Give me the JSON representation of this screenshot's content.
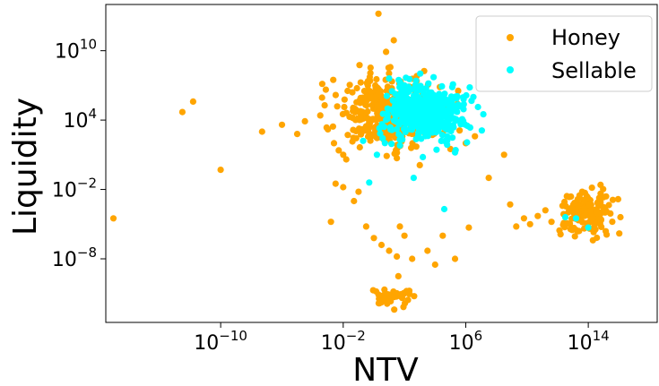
{
  "chart_data": {
    "type": "scatter",
    "title": "",
    "xlabel": "NTV",
    "ylabel": "Liquidity",
    "xscale": "log",
    "yscale": "log",
    "xlim_exp": [
      -17.5,
      18.5
    ],
    "ylim_exp": [
      -13.5,
      14
    ],
    "x_ticks": [
      {
        "exp": -10,
        "base": "10",
        "sup": "−10"
      },
      {
        "exp": -2,
        "base": "10",
        "sup": "−2"
      },
      {
        "exp": 6,
        "base": "10",
        "sup": "6"
      },
      {
        "exp": 14,
        "base": "10",
        "sup": "14"
      }
    ],
    "y_ticks": [
      {
        "exp": 10,
        "base": "10",
        "sup": "10"
      },
      {
        "exp": 4,
        "base": "10",
        "sup": "4"
      },
      {
        "exp": -2,
        "base": "10",
        "sup": "−2"
      },
      {
        "exp": -8,
        "base": "10",
        "sup": "−8"
      }
    ],
    "grid": false,
    "legend_position": "top-right",
    "series": [
      {
        "name": "Honey",
        "color": "#FFA500",
        "clusters": [
          {
            "cx": 0.8,
            "cy": 4.6,
            "sx": 1.6,
            "sy": 1.5,
            "n": 380
          },
          {
            "cx": 14.0,
            "cy": -4.0,
            "sx": 0.85,
            "sy": 0.9,
            "n": 150
          },
          {
            "cx": 1.0,
            "cy": -11.3,
            "sx": 0.7,
            "sy": 0.45,
            "n": 45
          }
        ],
        "points": [
          [
            -17.0,
            -4.5
          ],
          [
            -12.5,
            4.7
          ],
          [
            -11.8,
            5.6
          ],
          [
            -10.0,
            -0.3
          ],
          [
            -7.3,
            3.0
          ],
          [
            -6.0,
            3.6
          ],
          [
            -5.0,
            2.8
          ],
          [
            -4.5,
            3.9
          ],
          [
            -3.5,
            4.4
          ],
          [
            -3.0,
            3.2
          ],
          [
            -2.5,
            -1.5
          ],
          [
            -2.0,
            -1.8
          ],
          [
            -2.8,
            -4.8
          ],
          [
            -1.3,
            -3.0
          ],
          [
            -1.0,
            -2.2
          ],
          [
            -0.5,
            -5.2
          ],
          [
            0.0,
            -6.2
          ],
          [
            0.5,
            -6.8
          ],
          [
            1.0,
            -7.3
          ],
          [
            1.5,
            -7.8
          ],
          [
            1.6,
            -9.5
          ],
          [
            2.0,
            -6.0
          ],
          [
            2.5,
            -8.0
          ],
          [
            3.5,
            -7.3
          ],
          [
            4.0,
            -8.5
          ],
          [
            4.5,
            -6.0
          ],
          [
            5.3,
            -8.0
          ],
          [
            6.2,
            -5.3
          ],
          [
            7.5,
            -1.0
          ],
          [
            8.5,
            1.0
          ],
          [
            8.9,
            -3.3
          ],
          [
            9.3,
            -5.2
          ],
          [
            9.8,
            -4.5
          ],
          [
            10.2,
            -5.0
          ],
          [
            10.7,
            -4.3
          ],
          [
            11.2,
            -3.8
          ],
          [
            11.6,
            -4.8
          ],
          [
            -2.0,
            1.0
          ],
          [
            -2.6,
            2.0
          ],
          [
            0.8,
            9.9
          ],
          [
            1.3,
            10.9
          ],
          [
            2.8,
            7.8
          ],
          [
            4.2,
            5.3
          ],
          [
            5.6,
            3.1
          ],
          [
            6.6,
            2.6
          ],
          [
            3.0,
            0.1
          ],
          [
            1.7,
            -5.2
          ],
          [
            -1.8,
            0.6
          ],
          [
            5.0,
            1.5
          ],
          [
            6.0,
            2.0
          ],
          [
            0.3,
            13.2
          ],
          [
            12.4,
            -4.9
          ],
          [
            12.9,
            -3.6
          ],
          [
            13.6,
            -2.2
          ],
          [
            14.8,
            -1.6
          ],
          [
            15.6,
            -2.9
          ],
          [
            16.1,
            -4.4
          ],
          [
            15.2,
            -5.9
          ],
          [
            13.4,
            -5.6
          ],
          [
            14.3,
            -6.4
          ]
        ]
      },
      {
        "name": "Sellable",
        "color": "#00FFFF",
        "clusters": [
          {
            "cx": 3.3,
            "cy": 4.6,
            "sx": 1.2,
            "sy": 1.1,
            "n": 520
          }
        ],
        "points": [
          [
            -0.7,
            2.2
          ],
          [
            -0.3,
            -1.4
          ],
          [
            0.2,
            1.0
          ],
          [
            2.6,
            -1.0
          ],
          [
            4.6,
            -3.7
          ],
          [
            5.3,
            1.2
          ],
          [
            6.1,
            3.5
          ],
          [
            13.2,
            -4.5
          ],
          [
            14.0,
            -5.3
          ],
          [
            12.5,
            -4.4
          ],
          [
            1.0,
            7.6
          ],
          [
            2.0,
            7.0
          ],
          [
            0.9,
            5.0
          ],
          [
            3.2,
            0.8
          ],
          [
            6.5,
            6.0
          ]
        ]
      }
    ]
  }
}
